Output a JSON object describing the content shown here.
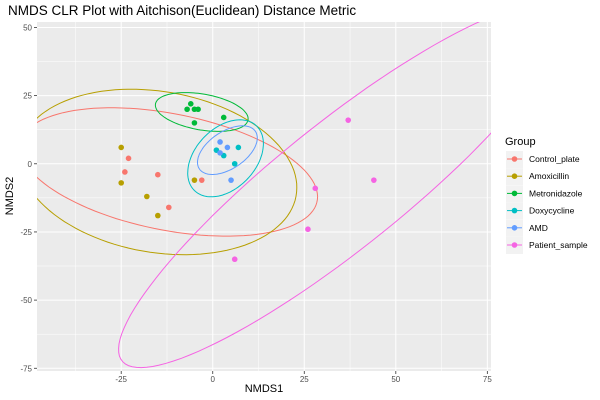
{
  "chart_data": {
    "type": "scatter",
    "title": "NMDS CLR Plot with Aitchison(Euclidean) Distance Metric",
    "xlabel": "NMDS1",
    "ylabel": "NMDS2",
    "xlim": [
      -48,
      76
    ],
    "ylim": [
      -76,
      52
    ],
    "x_ticks": [
      -25,
      0,
      25,
      50,
      75
    ],
    "y_ticks": [
      -75,
      -50,
      -25,
      0,
      25,
      50
    ],
    "grid": true,
    "legend_title": "Group",
    "legend_position": "right",
    "series": [
      {
        "name": "Control_plate",
        "color": "#F8766D",
        "points": [
          [
            -24,
            -3
          ],
          [
            -23,
            2
          ],
          [
            -15,
            -4
          ],
          [
            -12,
            -16
          ],
          [
            -3,
            -6
          ]
        ],
        "ellipse": {
          "cx": -12,
          "cy": -3,
          "rx": 42,
          "ry": 21,
          "angle_deg": -17
        }
      },
      {
        "name": "Amoxicillin",
        "color": "#B79F00",
        "points": [
          [
            -25,
            6
          ],
          [
            -25,
            -7
          ],
          [
            -18,
            -12
          ],
          [
            -15,
            -19
          ],
          [
            -5,
            -6
          ]
        ],
        "ellipse": {
          "cx": -15,
          "cy": -3,
          "rx": 39,
          "ry": 29,
          "angle_deg": -20
        }
      },
      {
        "name": "Metronidazole",
        "color": "#00BA38",
        "points": [
          [
            -6,
            22
          ],
          [
            -5,
            20
          ],
          [
            -7,
            20
          ],
          [
            -4,
            20
          ],
          [
            -5,
            15
          ],
          [
            3,
            17
          ]
        ],
        "ellipse": {
          "cx": -3,
          "cy": 19,
          "rx": 13,
          "ry": 6.5,
          "angle_deg": -15
        }
      },
      {
        "name": "Doxycycline",
        "color": "#00BFC4",
        "points": [
          [
            1,
            5
          ],
          [
            3,
            3
          ],
          [
            7,
            6
          ],
          [
            6,
            0
          ]
        ],
        "ellipse": {
          "cx": 3.5,
          "cy": 2,
          "rx": 15,
          "ry": 9,
          "angle_deg": 65
        }
      },
      {
        "name": "AMD",
        "color": "#619CFF",
        "points": [
          [
            2,
            4
          ],
          [
            2,
            8
          ],
          [
            4,
            6
          ],
          [
            5,
            -6
          ]
        ],
        "ellipse": {
          "cx": 4,
          "cy": 5,
          "rx": 10.5,
          "ry": 6,
          "angle_deg": 50
        }
      },
      {
        "name": "Patient_sample",
        "color": "#F564E3",
        "points": [
          [
            37,
            16
          ],
          [
            44,
            -6
          ],
          [
            28,
            -9
          ],
          [
            26,
            -24
          ],
          [
            6,
            -35
          ]
        ],
        "ellipse": {
          "cx": 35,
          "cy": -8,
          "rx": 88,
          "ry": 20,
          "angle_deg": 48
        }
      }
    ]
  }
}
